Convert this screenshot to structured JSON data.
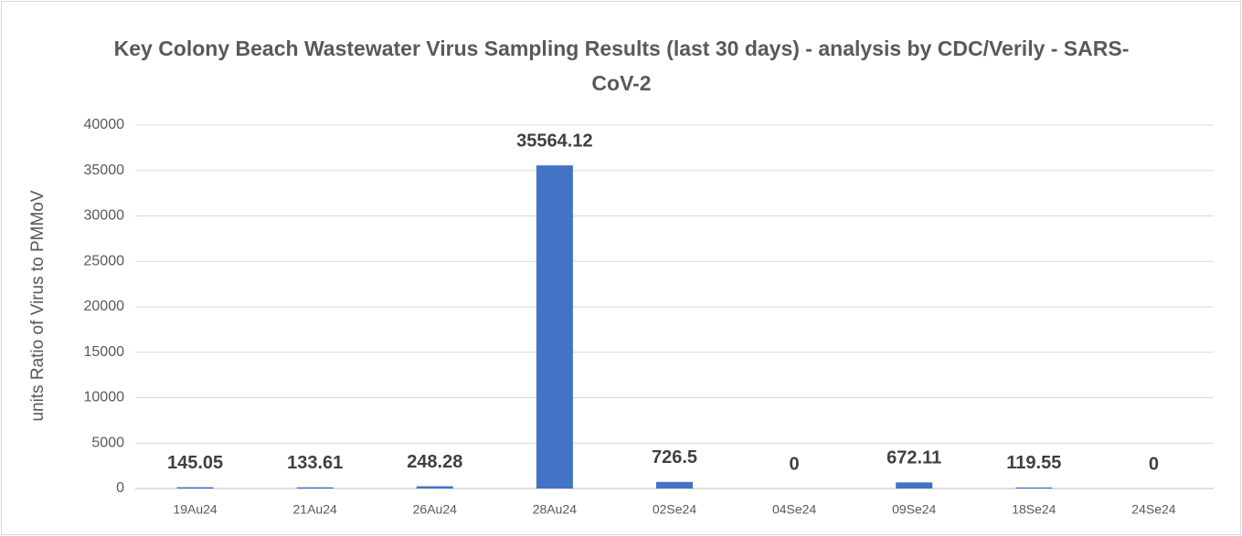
{
  "chart_data": {
    "type": "bar",
    "title": "Key Colony Beach Wastewater Virus Sampling Results (last 30 days) - analysis by CDC/Verily - SARS-CoV-2",
    "ylabel": "units Ratio of Virus to PMMoV",
    "categories": [
      "19Au24",
      "21Au24",
      "26Au24",
      "28Au24",
      "02Se24",
      "04Se24",
      "09Se24",
      "18Se24",
      "24Se24"
    ],
    "values": [
      145.05,
      133.61,
      248.28,
      35564.12,
      726.5,
      0,
      672.11,
      119.55,
      0
    ],
    "color": "#4472c4",
    "ylim": [
      0,
      40000
    ],
    "yticks": [
      0,
      5000,
      10000,
      15000,
      20000,
      25000,
      30000,
      35000,
      40000
    ],
    "grid": true,
    "data_labels": true
  }
}
